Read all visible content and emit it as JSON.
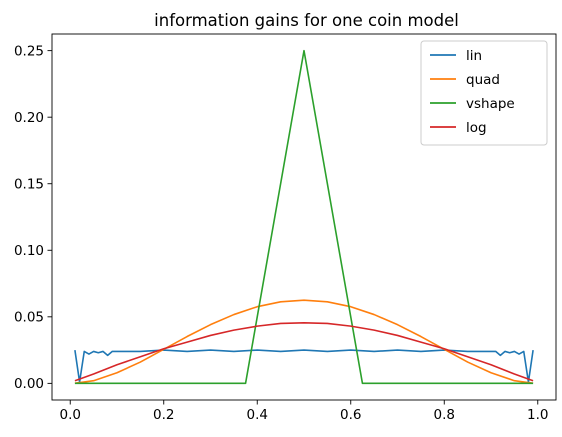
{
  "chart_data": {
    "type": "line",
    "title": "information gains for one coin model",
    "xlabel": "",
    "ylabel": "",
    "xlim": [
      -0.039,
      1.039
    ],
    "ylim": [
      -0.0125,
      0.2625
    ],
    "xticks": [
      0.0,
      0.2,
      0.4,
      0.6,
      0.8,
      1.0
    ],
    "xtick_labels": [
      "0.0",
      "0.2",
      "0.4",
      "0.6",
      "0.8",
      "1.0"
    ],
    "yticks": [
      0.0,
      0.05,
      0.1,
      0.15,
      0.2,
      0.25
    ],
    "ytick_labels": [
      "0.00",
      "0.05",
      "0.10",
      "0.15",
      "0.20",
      "0.25"
    ],
    "grid": false,
    "legend_position": "upper right",
    "series": [
      {
        "name": "lin",
        "color": "#1f77b4",
        "x": [
          0.01,
          0.02,
          0.03,
          0.04,
          0.05,
          0.06,
          0.07,
          0.08,
          0.09,
          0.1,
          0.15,
          0.2,
          0.25,
          0.3,
          0.35,
          0.4,
          0.45,
          0.5,
          0.55,
          0.6,
          0.65,
          0.7,
          0.75,
          0.8,
          0.85,
          0.9,
          0.91,
          0.92,
          0.93,
          0.94,
          0.95,
          0.96,
          0.97,
          0.98,
          0.99
        ],
        "y": [
          0.025,
          0.001,
          0.024,
          0.022,
          0.024,
          0.023,
          0.024,
          0.021,
          0.024,
          0.024,
          0.024,
          0.025,
          0.024,
          0.025,
          0.024,
          0.025,
          0.024,
          0.025,
          0.024,
          0.025,
          0.024,
          0.025,
          0.024,
          0.025,
          0.024,
          0.024,
          0.024,
          0.021,
          0.024,
          0.023,
          0.024,
          0.022,
          0.024,
          0.001,
          0.025
        ]
      },
      {
        "name": "quad",
        "color": "#ff7f0e",
        "x": [
          0.01,
          0.05,
          0.1,
          0.15,
          0.2,
          0.25,
          0.3,
          0.35,
          0.4,
          0.45,
          0.5,
          0.55,
          0.6,
          0.65,
          0.7,
          0.75,
          0.8,
          0.85,
          0.9,
          0.95,
          0.99
        ],
        "y": [
          0.0001,
          0.002,
          0.008,
          0.016,
          0.0256,
          0.0352,
          0.0441,
          0.0517,
          0.0576,
          0.0613,
          0.0625,
          0.0613,
          0.0576,
          0.0517,
          0.0441,
          0.0352,
          0.0256,
          0.016,
          0.008,
          0.002,
          0.0001
        ]
      },
      {
        "name": "vshape",
        "color": "#2ca02c",
        "x": [
          0.01,
          0.375,
          0.5,
          0.625,
          0.99
        ],
        "y": [
          0.0,
          0.0,
          0.25,
          0.0,
          0.0
        ]
      },
      {
        "name": "log",
        "color": "#d62728",
        "x": [
          0.01,
          0.05,
          0.1,
          0.15,
          0.2,
          0.25,
          0.3,
          0.35,
          0.4,
          0.45,
          0.5,
          0.55,
          0.6,
          0.65,
          0.7,
          0.75,
          0.8,
          0.85,
          0.9,
          0.95,
          0.99
        ],
        "y": [
          0.002,
          0.007,
          0.014,
          0.02,
          0.026,
          0.031,
          0.036,
          0.04,
          0.043,
          0.045,
          0.0455,
          0.045,
          0.043,
          0.04,
          0.036,
          0.031,
          0.026,
          0.02,
          0.014,
          0.007,
          0.002
        ]
      }
    ]
  }
}
